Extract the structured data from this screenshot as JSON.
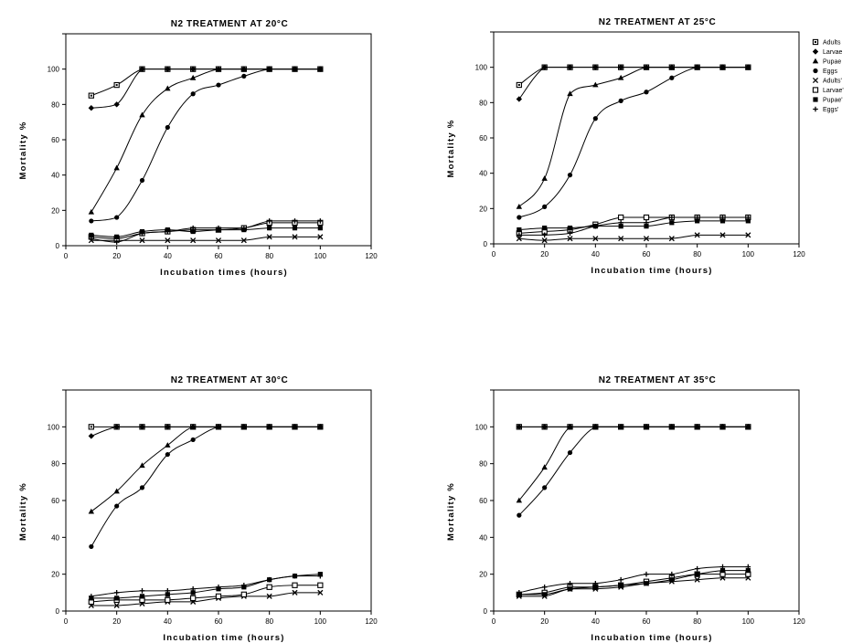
{
  "chart_data": [
    {
      "type": "line",
      "title": "N2 TREATMENT AT 20°C",
      "xlabel": "Incubation times (hours)",
      "ylabel": "Mortality %",
      "xlim": [
        0,
        120
      ],
      "ylim": [
        0,
        120
      ],
      "xticks": [
        0,
        20,
        40,
        60,
        80,
        100,
        120
      ],
      "yticks": [
        0,
        20,
        40,
        60,
        80,
        100
      ],
      "grid": false,
      "series": [
        {
          "marker": "square",
          "x": [
            10,
            20,
            30,
            40,
            50,
            60,
            70,
            80,
            90,
            100
          ],
          "y": [
            85,
            91,
            100,
            100,
            100,
            100,
            100,
            100,
            100,
            100
          ]
        },
        {
          "marker": "diamond",
          "x": [
            10,
            20,
            30,
            40,
            50,
            60,
            70,
            80,
            90,
            100
          ],
          "y": [
            78,
            80,
            100,
            100,
            100,
            100,
            100,
            100,
            100,
            100
          ]
        },
        {
          "marker": "triangle",
          "x": [
            10,
            20,
            30,
            40,
            50,
            60,
            70,
            80,
            90,
            100
          ],
          "y": [
            19,
            44,
            74,
            89,
            95,
            100,
            100,
            100,
            100,
            100
          ]
        },
        {
          "marker": "circle",
          "x": [
            10,
            20,
            30,
            40,
            50,
            60,
            70,
            80,
            90,
            100
          ],
          "y": [
            14,
            16,
            37,
            67,
            86,
            91,
            96,
            100,
            100,
            100
          ]
        },
        {
          "marker": "x",
          "x": [
            10,
            20,
            30,
            40,
            50,
            60,
            70,
            80,
            90,
            100
          ],
          "y": [
            3,
            3,
            3,
            3,
            3,
            3,
            3,
            5,
            5,
            5
          ]
        },
        {
          "marker": "square-open",
          "x": [
            10,
            20,
            30,
            40,
            50,
            60,
            70,
            80,
            90,
            100
          ],
          "y": [
            5,
            4,
            7,
            8,
            9,
            9,
            10,
            13,
            13,
            13
          ]
        },
        {
          "marker": "square-filled",
          "x": [
            10,
            20,
            30,
            40,
            50,
            60,
            70,
            80,
            90,
            100
          ],
          "y": [
            6,
            5,
            8,
            9,
            8,
            9,
            9,
            10,
            10,
            10
          ]
        },
        {
          "marker": "plus",
          "x": [
            10,
            20,
            30,
            40,
            50,
            60,
            70,
            80,
            90,
            100
          ],
          "y": [
            4,
            2,
            7,
            8,
            10,
            10,
            10,
            14,
            14,
            14
          ]
        }
      ]
    },
    {
      "type": "line",
      "title": "N2 TREATMENT AT 25°C",
      "xlabel": "Incubation time (hours)",
      "ylabel": "Mortality %",
      "xlim": [
        0,
        120
      ],
      "ylim": [
        0,
        120
      ],
      "xticks": [
        0,
        20,
        40,
        60,
        80,
        100,
        120
      ],
      "yticks": [
        0,
        20,
        40,
        60,
        80,
        100
      ],
      "grid": false,
      "legend": {
        "position": "right",
        "entries": [
          {
            "marker": "square",
            "label": "Adults"
          },
          {
            "marker": "diamond",
            "label": "Larvae"
          },
          {
            "marker": "triangle",
            "label": "Pupae"
          },
          {
            "marker": "circle",
            "label": "Eggs"
          },
          {
            "marker": "x",
            "label": "Adults'"
          },
          {
            "marker": "square-open",
            "label": "Larvae'"
          },
          {
            "marker": "square-filled",
            "label": "Pupae'"
          },
          {
            "marker": "plus",
            "label": "Eggs'"
          }
        ]
      },
      "series": [
        {
          "marker": "square",
          "x": [
            10,
            20,
            30,
            40,
            50,
            60,
            70,
            80,
            90,
            100
          ],
          "y": [
            90,
            100,
            100,
            100,
            100,
            100,
            100,
            100,
            100,
            100
          ]
        },
        {
          "marker": "diamond",
          "x": [
            10,
            20,
            30,
            40,
            50,
            60,
            70,
            80,
            90,
            100
          ],
          "y": [
            82,
            100,
            100,
            100,
            100,
            100,
            100,
            100,
            100,
            100
          ]
        },
        {
          "marker": "triangle",
          "x": [
            10,
            20,
            30,
            40,
            50,
            60,
            70,
            80,
            90,
            100
          ],
          "y": [
            21,
            37,
            85,
            90,
            94,
            100,
            100,
            100,
            100,
            100
          ]
        },
        {
          "marker": "circle",
          "x": [
            10,
            20,
            30,
            40,
            50,
            60,
            70,
            80,
            90,
            100
          ],
          "y": [
            15,
            21,
            39,
            71,
            81,
            86,
            94,
            100,
            100,
            100
          ]
        },
        {
          "marker": "x",
          "x": [
            10,
            20,
            30,
            40,
            50,
            60,
            70,
            80,
            90,
            100
          ],
          "y": [
            3,
            2,
            3,
            3,
            3,
            3,
            3,
            5,
            5,
            5
          ]
        },
        {
          "marker": "square-open",
          "x": [
            10,
            20,
            30,
            40,
            50,
            60,
            70,
            80,
            90,
            100
          ],
          "y": [
            6,
            7,
            8,
            11,
            15,
            15,
            15,
            15,
            15,
            15
          ]
        },
        {
          "marker": "square-filled",
          "x": [
            10,
            20,
            30,
            40,
            50,
            60,
            70,
            80,
            90,
            100
          ],
          "y": [
            8,
            9,
            9,
            10,
            10,
            10,
            12,
            13,
            13,
            13
          ]
        },
        {
          "marker": "plus",
          "x": [
            10,
            20,
            30,
            40,
            50,
            60,
            70,
            80,
            90,
            100
          ],
          "y": [
            5,
            5,
            6,
            10,
            12,
            12,
            15,
            15,
            15,
            15
          ]
        }
      ]
    },
    {
      "type": "line",
      "title": "N2 TREATMENT AT 30°C",
      "xlabel": "Incubation time (hours)",
      "ylabel": "Mortality %",
      "xlim": [
        0,
        120
      ],
      "ylim": [
        0,
        120
      ],
      "xticks": [
        0,
        20,
        40,
        60,
        80,
        100,
        120
      ],
      "yticks": [
        0,
        20,
        40,
        60,
        80,
        100
      ],
      "grid": false,
      "series": [
        {
          "marker": "square",
          "x": [
            10,
            20,
            30,
            40,
            50,
            60,
            70,
            80,
            90,
            100
          ],
          "y": [
            100,
            100,
            100,
            100,
            100,
            100,
            100,
            100,
            100,
            100
          ]
        },
        {
          "marker": "diamond",
          "x": [
            10,
            20,
            30,
            40,
            50,
            60,
            70,
            80,
            90,
            100
          ],
          "y": [
            95,
            100,
            100,
            100,
            100,
            100,
            100,
            100,
            100,
            100
          ]
        },
        {
          "marker": "triangle",
          "x": [
            10,
            20,
            30,
            40,
            50,
            60,
            70,
            80,
            90,
            100
          ],
          "y": [
            54,
            65,
            79,
            90,
            100,
            100,
            100,
            100,
            100,
            100
          ]
        },
        {
          "marker": "circle",
          "x": [
            10,
            20,
            30,
            40,
            50,
            60,
            70,
            80,
            90,
            100
          ],
          "y": [
            35,
            57,
            67,
            85,
            93,
            100,
            100,
            100,
            100,
            100
          ]
        },
        {
          "marker": "x",
          "x": [
            10,
            20,
            30,
            40,
            50,
            60,
            70,
            80,
            90,
            100
          ],
          "y": [
            3,
            3,
            4,
            5,
            5,
            7,
            8,
            8,
            10,
            10
          ]
        },
        {
          "marker": "square-open",
          "x": [
            10,
            20,
            30,
            40,
            50,
            60,
            70,
            80,
            90,
            100
          ],
          "y": [
            5,
            6,
            6,
            6,
            7,
            8,
            9,
            13,
            14,
            14
          ]
        },
        {
          "marker": "square-filled",
          "x": [
            10,
            20,
            30,
            40,
            50,
            60,
            70,
            80,
            90,
            100
          ],
          "y": [
            7,
            7,
            8,
            9,
            10,
            12,
            13,
            17,
            19,
            20
          ]
        },
        {
          "marker": "plus",
          "x": [
            10,
            20,
            30,
            40,
            50,
            60,
            70,
            80,
            90,
            100
          ],
          "y": [
            8,
            10,
            11,
            11,
            12,
            13,
            14,
            17,
            19,
            19
          ]
        }
      ]
    },
    {
      "type": "line",
      "title": "N2 TREATMENT AT 35°C",
      "xlabel": "Incubation time (hours)",
      "ylabel": "Mortality %",
      "xlim": [
        0,
        120
      ],
      "ylim": [
        0,
        120
      ],
      "xticks": [
        0,
        20,
        40,
        60,
        80,
        100,
        120
      ],
      "yticks": [
        0,
        20,
        40,
        60,
        80,
        100
      ],
      "grid": false,
      "series": [
        {
          "marker": "square",
          "x": [
            10,
            20,
            30,
            40,
            50,
            60,
            70,
            80,
            90,
            100
          ],
          "y": [
            100,
            100,
            100,
            100,
            100,
            100,
            100,
            100,
            100,
            100
          ]
        },
        {
          "marker": "diamond",
          "x": [
            10,
            20,
            30,
            40,
            50,
            60,
            70,
            80,
            90,
            100
          ],
          "y": [
            100,
            100,
            100,
            100,
            100,
            100,
            100,
            100,
            100,
            100
          ]
        },
        {
          "marker": "triangle",
          "x": [
            10,
            20,
            30,
            40,
            50,
            60,
            70,
            80,
            90,
            100
          ],
          "y": [
            60,
            78,
            100,
            100,
            100,
            100,
            100,
            100,
            100,
            100
          ]
        },
        {
          "marker": "circle",
          "x": [
            10,
            20,
            30,
            40,
            50,
            60,
            70,
            80,
            90,
            100
          ],
          "y": [
            52,
            67,
            86,
            100,
            100,
            100,
            100,
            100,
            100,
            100
          ]
        },
        {
          "marker": "x",
          "x": [
            10,
            20,
            30,
            40,
            50,
            60,
            70,
            80,
            90,
            100
          ],
          "y": [
            8,
            8,
            12,
            12,
            13,
            15,
            16,
            17,
            18,
            18
          ]
        },
        {
          "marker": "square-open",
          "x": [
            10,
            20,
            30,
            40,
            50,
            60,
            70,
            80,
            90,
            100
          ],
          "y": [
            9,
            10,
            13,
            13,
            14,
            16,
            18,
            20,
            20,
            20
          ]
        },
        {
          "marker": "square-filled",
          "x": [
            10,
            20,
            30,
            40,
            50,
            60,
            70,
            80,
            90,
            100
          ],
          "y": [
            9,
            9,
            12,
            13,
            14,
            15,
            17,
            20,
            22,
            22
          ]
        },
        {
          "marker": "plus",
          "x": [
            10,
            20,
            30,
            40,
            50,
            60,
            70,
            80,
            90,
            100
          ],
          "y": [
            10,
            13,
            15,
            15,
            17,
            20,
            20,
            23,
            24,
            24
          ]
        }
      ]
    }
  ]
}
